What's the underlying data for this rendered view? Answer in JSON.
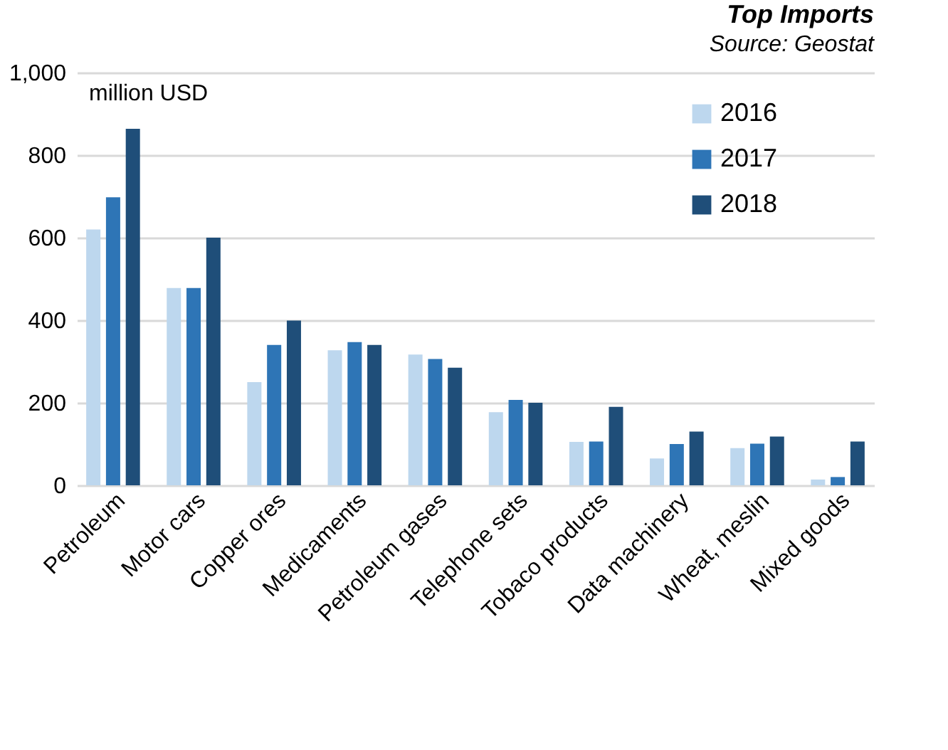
{
  "chart_data": {
    "type": "bar",
    "title": "Top Imports",
    "annotations": [
      "Source: Geostat"
    ],
    "ylabel": "million USD",
    "categories": [
      "Petroleum",
      "Motor cars",
      "Copper ores",
      "Medicaments",
      "Petroleum gases",
      "Telephone sets",
      "Tobaco products",
      "Data machinery",
      "Wheat, meslin",
      "Mixed goods"
    ],
    "series": [
      {
        "name": "2016",
        "color": "#bdd7ee",
        "values": [
          620,
          478,
          250,
          327,
          317,
          177,
          105,
          65,
          90,
          14
        ]
      },
      {
        "name": "2017",
        "color": "#2e75b6",
        "values": [
          698,
          478,
          340,
          347,
          306,
          207,
          106,
          100,
          101,
          20
        ]
      },
      {
        "name": "2018",
        "color": "#1f4e79",
        "values": [
          864,
          600,
          399,
          340,
          285,
          200,
          190,
          130,
          118,
          106
        ]
      }
    ],
    "ylim": [
      0,
      1000
    ],
    "yticks": [
      0,
      200,
      400,
      600,
      800,
      {
        "value": 1000,
        "label": "1,000"
      }
    ],
    "grid": "y",
    "legend": "top right"
  }
}
